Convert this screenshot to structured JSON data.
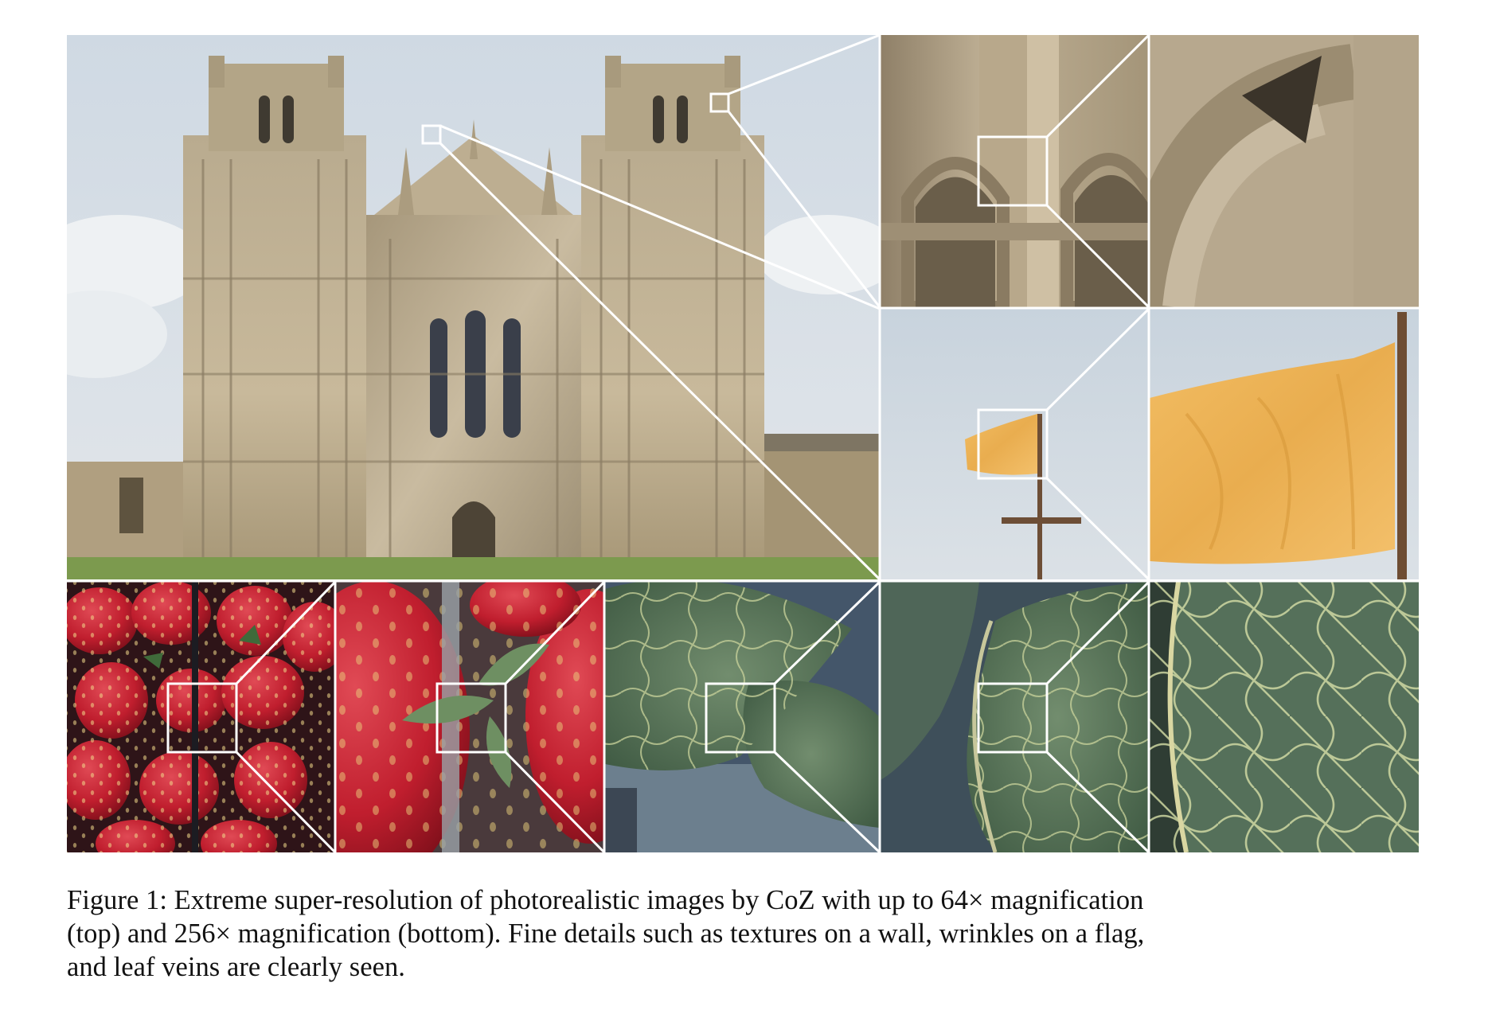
{
  "figure": {
    "caption_label": "Figure 1:",
    "caption_lines": [
      "Extreme super-resolution of photorealistic images by CoZ with up to 64× magnification",
      "(top) and 256× magnification (bottom). Fine details such as textures on a wall, wrinkles on a flag,",
      "and leaf veins are clearly seen."
    ]
  },
  "panels": [
    {
      "name": "cathedral",
      "subject": "cathedral facade"
    },
    {
      "name": "wall-zoom-1",
      "subject": "stone arch detail"
    },
    {
      "name": "wall-zoom-2",
      "subject": "stone arch close-up"
    },
    {
      "name": "flag-zoom-1",
      "subject": "flag on pole"
    },
    {
      "name": "flag-zoom-2",
      "subject": "flag close-up"
    },
    {
      "name": "strawberry-1",
      "subject": "strawberries"
    },
    {
      "name": "strawberry-2",
      "subject": "strawberry close-up"
    },
    {
      "name": "leaf-1",
      "subject": "leaf"
    },
    {
      "name": "leaf-2",
      "subject": "leaf close-up"
    },
    {
      "name": "leaf-3",
      "subject": "leaf veins"
    }
  ],
  "colors": {
    "sky": "#d4dde6",
    "stone": "#c2b496",
    "flag": "#efb457",
    "strawberry": "#c0202f",
    "leaf": "#5f7a5c"
  }
}
